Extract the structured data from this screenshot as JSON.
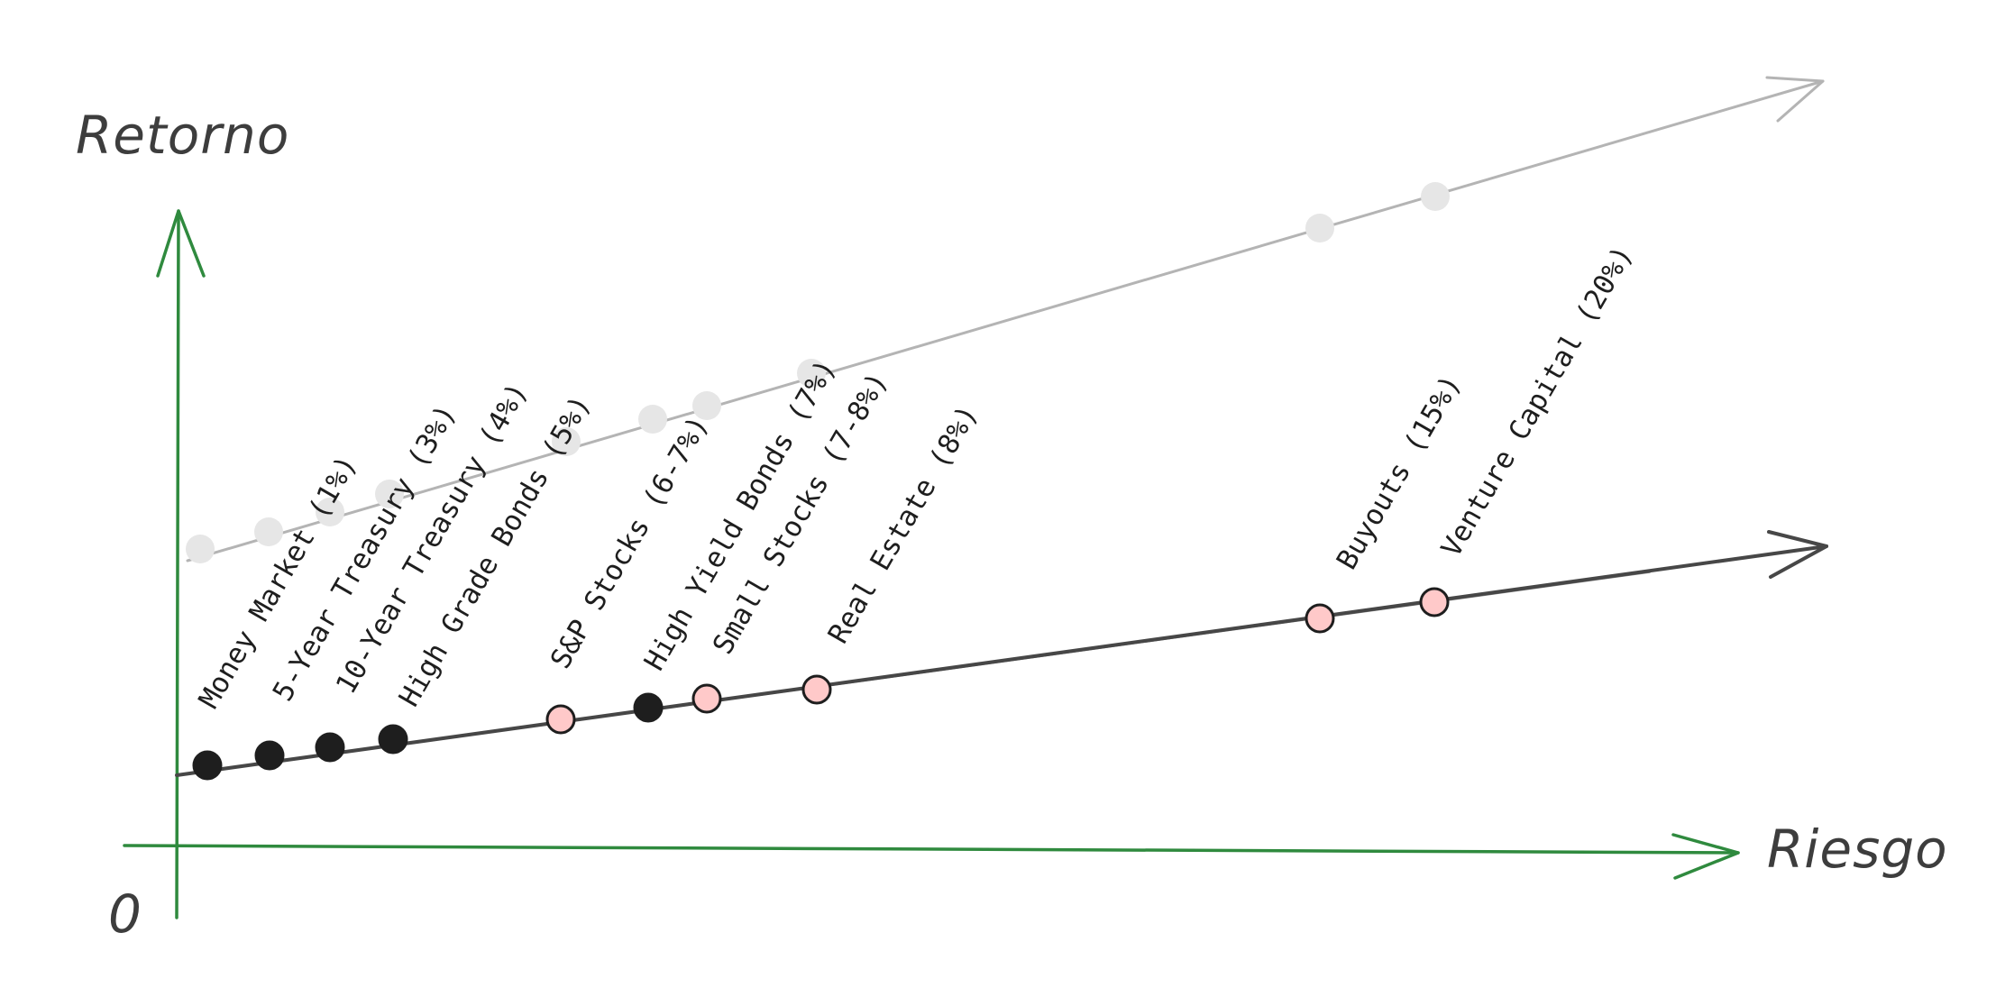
{
  "axes": {
    "y_label": "Retorno",
    "x_label": "Riesgo",
    "origin_label": "0",
    "axis_color": "#2f8a3e"
  },
  "lines": {
    "main_color": "#474747",
    "ghost_color": "#b4b4b4"
  },
  "assets": [
    {
      "name": "Money Market (1%)",
      "fill": "#1e1e1e"
    },
    {
      "name": "5-Year Treasury (3%)",
      "fill": "#1e1e1e"
    },
    {
      "name": "10-Year Treasury (4%)",
      "fill": "#1e1e1e"
    },
    {
      "name": "High Grade Bonds (5%)",
      "fill": "#1e1e1e"
    },
    {
      "name": "S&P Stocks (6-7%)",
      "fill": "#ffc9c9"
    },
    {
      "name": "High Yield Bonds (7%)",
      "fill": "#1e1e1e"
    },
    {
      "name": "Small Stocks (7-8%)",
      "fill": "#ffc9c9"
    },
    {
      "name": "Real Estate (8%)",
      "fill": "#ffc9c9"
    },
    {
      "name": "Buyouts (15%)",
      "fill": "#ffc9c9"
    },
    {
      "name": "Venture Capital (20%)",
      "fill": "#ffc9c9"
    }
  ]
}
